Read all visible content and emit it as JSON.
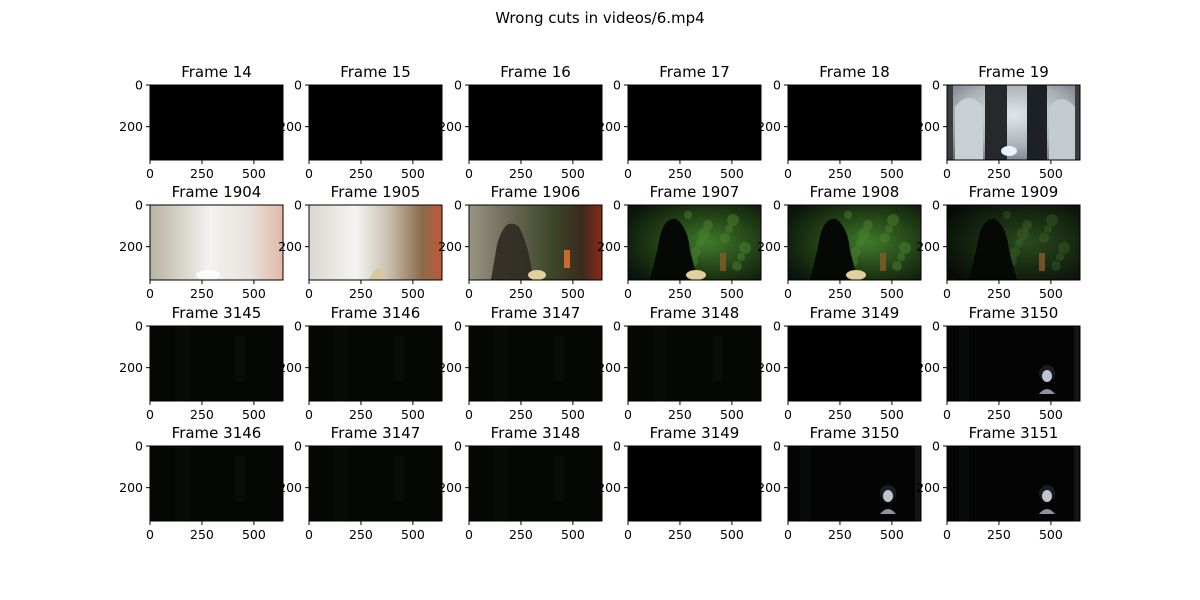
{
  "chart_data": {
    "type": "image_grid",
    "title": "Wrong cuts in videos/6.mp4",
    "rows": [
      {
        "frames": [
          {
            "label": "Frame 14",
            "content": "black"
          },
          {
            "label": "Frame 15",
            "content": "black"
          },
          {
            "label": "Frame 16",
            "content": "black"
          },
          {
            "label": "Frame 17",
            "content": "black"
          },
          {
            "label": "Frame 18",
            "content": "black"
          },
          {
            "label": "Frame 19",
            "content": "cathedral"
          }
        ]
      },
      {
        "frames": [
          {
            "label": "Frame 1904",
            "content": "bright-haze"
          },
          {
            "label": "Frame 1905",
            "content": "bright-haze-red"
          },
          {
            "label": "Frame 1906",
            "content": "silhouette-mix"
          },
          {
            "label": "Frame 1907",
            "content": "silhouette-green"
          },
          {
            "label": "Frame 1908",
            "content": "silhouette-green"
          },
          {
            "label": "Frame 1909",
            "content": "silhouette-dark"
          }
        ]
      },
      {
        "frames": [
          {
            "label": "Frame 3145",
            "content": "near-black"
          },
          {
            "label": "Frame 3146",
            "content": "near-black"
          },
          {
            "label": "Frame 3147",
            "content": "near-black"
          },
          {
            "label": "Frame 3148",
            "content": "near-black"
          },
          {
            "label": "Frame 3149",
            "content": "black"
          },
          {
            "label": "Frame 3150",
            "content": "face"
          }
        ]
      },
      {
        "frames": [
          {
            "label": "Frame 3146",
            "content": "near-black"
          },
          {
            "label": "Frame 3147",
            "content": "near-black"
          },
          {
            "label": "Frame 3148",
            "content": "near-black"
          },
          {
            "label": "Frame 3149",
            "content": "black"
          },
          {
            "label": "Frame 3150",
            "content": "face"
          },
          {
            "label": "Frame 3151",
            "content": "face"
          }
        ]
      }
    ],
    "x_ticks": [
      "0",
      "250",
      "500"
    ],
    "x_tick_values": [
      0,
      250,
      500
    ],
    "y_ticks": [
      "0",
      "200"
    ],
    "y_tick_values": [
      0,
      200
    ],
    "xlim": [
      0,
      640
    ],
    "ylim": [
      360,
      0
    ]
  }
}
